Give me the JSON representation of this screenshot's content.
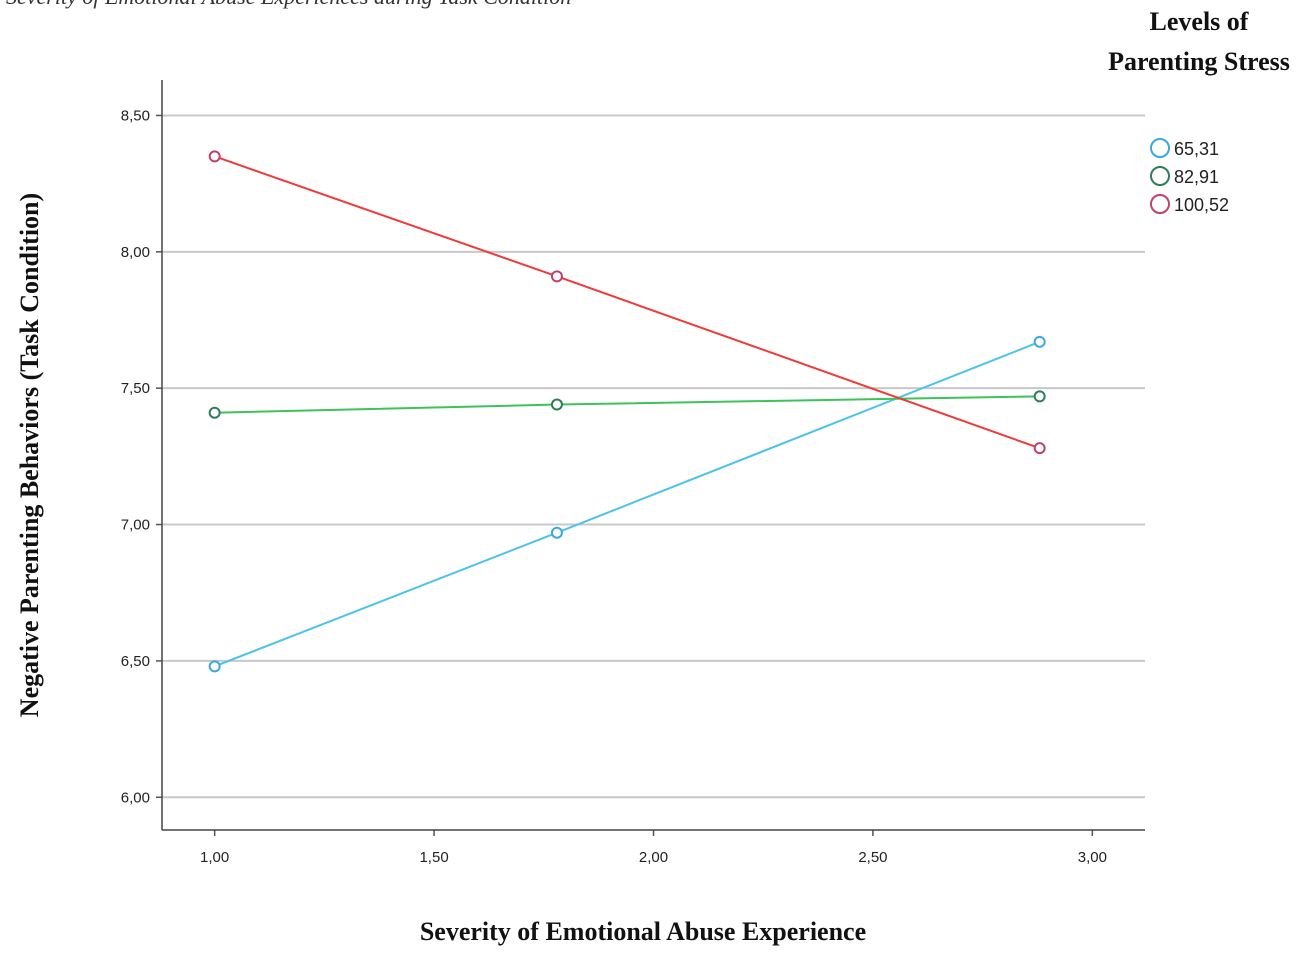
{
  "top_caption": "Severity of Emotional Abuse Experiences during Task Condition",
  "chart_data": {
    "type": "line",
    "title": "",
    "xlabel": "Severity of Emotional Abuse Experience",
    "ylabel": "Negative Parenting Behaviors (Task Condition)",
    "legend_title_line1": "Levels of",
    "legend_title_line2": "Parenting Stress",
    "legend_position": "top-right",
    "grid": "horizontal",
    "x": [
      1.0,
      1.78,
      2.88
    ],
    "xlim": [
      0.88,
      3.12
    ],
    "ylim": [
      5.88,
      8.63
    ],
    "x_ticks": [
      1.0,
      1.5,
      2.0,
      2.5,
      3.0
    ],
    "x_tick_labels": [
      "1,00",
      "1,50",
      "2,00",
      "2,50",
      "3,00"
    ],
    "y_ticks": [
      6.0,
      6.5,
      7.0,
      7.5,
      8.0,
      8.5
    ],
    "y_tick_labels": [
      "6,00",
      "6,50",
      "7,00",
      "7,50",
      "8,00",
      "8,50"
    ],
    "series": [
      {
        "name": "65,31",
        "values": [
          6.48,
          6.97,
          7.67
        ],
        "line_color": "#4cc3ea",
        "marker_color": "#3aa8e0"
      },
      {
        "name": "82,91",
        "values": [
          7.41,
          7.44,
          7.47
        ],
        "line_color": "#3cc35a",
        "marker_color": "#2e7d5b"
      },
      {
        "name": "100,52",
        "values": [
          8.35,
          7.91,
          7.28
        ],
        "line_color": "#f03a3a",
        "marker_color": "#c0406e"
      }
    ]
  }
}
